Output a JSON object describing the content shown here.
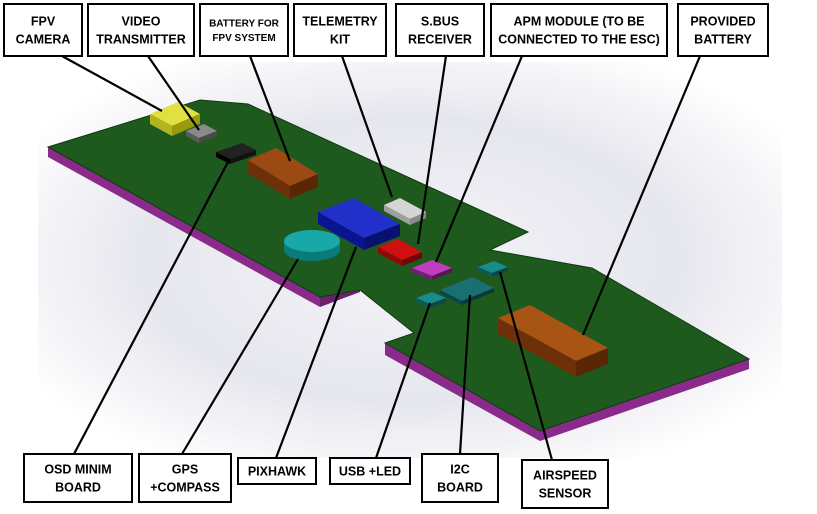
{
  "diagram": {
    "colors": {
      "board_top": "#1e5a1e",
      "board_edge": "#8a2a8a",
      "background_glow": "#dcdce4"
    },
    "labels": [
      {
        "id": "fpv-camera",
        "lines": [
          "FPV",
          "CAMERA"
        ]
      },
      {
        "id": "video-transmitter",
        "lines": [
          "VIDEO",
          "TRANSMITTER"
        ]
      },
      {
        "id": "battery-fpv",
        "lines": [
          "BATTERY FOR",
          "FPV SYSTEM"
        ]
      },
      {
        "id": "telemetry-kit",
        "lines": [
          "TELEMETRY",
          "KIT"
        ]
      },
      {
        "id": "sbus-receiver",
        "lines": [
          "S.BUS",
          "RECEIVER"
        ]
      },
      {
        "id": "apm-module",
        "lines": [
          "APM MODULE (TO BE",
          "CONNECTED TO THE ESC)"
        ]
      },
      {
        "id": "provided-battery",
        "lines": [
          "PROVIDED",
          "BATTERY"
        ]
      },
      {
        "id": "osd-minim-board",
        "lines": [
          "OSD MINIM",
          "BOARD"
        ]
      },
      {
        "id": "gps-compass",
        "lines": [
          "GPS",
          "+COMPASS"
        ]
      },
      {
        "id": "pixhawk",
        "lines": [
          "PIXHAWK"
        ]
      },
      {
        "id": "usb-led",
        "lines": [
          "USB +LED"
        ]
      },
      {
        "id": "i2c-board",
        "lines": [
          "I2C",
          "BOARD"
        ]
      },
      {
        "id": "airspeed-sensor",
        "lines": [
          "AIRSPEED",
          "SENSOR"
        ]
      }
    ]
  }
}
